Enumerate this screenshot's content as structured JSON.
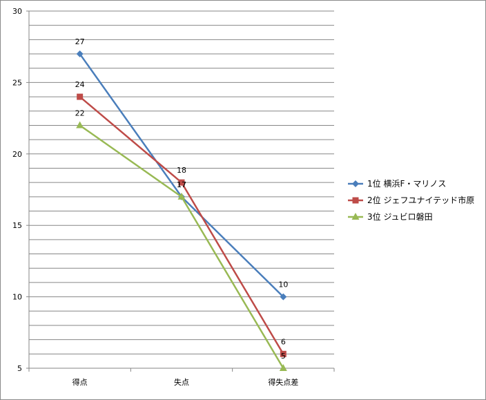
{
  "chart_data": {
    "type": "line",
    "categories": [
      "得点",
      "失点",
      "得失点差"
    ],
    "ylim": [
      5,
      30
    ],
    "yticks": [
      5,
      10,
      15,
      20,
      25,
      30
    ],
    "minor_grid_step": 1,
    "grid": true,
    "legend_position": "right",
    "series": [
      {
        "name": "1位  横浜F・マリノス",
        "values": [
          27,
          17,
          10
        ],
        "color": "#4a7ebb",
        "marker": "diamond"
      },
      {
        "name": "2位  ジェフユナイテッド市原",
        "values": [
          24,
          18,
          6
        ],
        "color": "#be4b48",
        "marker": "square"
      },
      {
        "name": "3位  ジュビロ磐田",
        "values": [
          22,
          17,
          5
        ],
        "color": "#98b954",
        "marker": "triangle"
      }
    ]
  }
}
